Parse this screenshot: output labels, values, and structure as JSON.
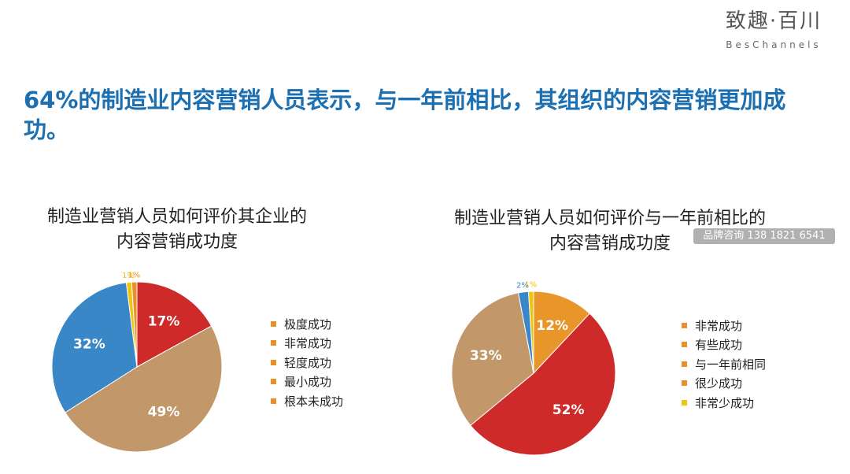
{
  "brand": {
    "cn": "致趣·百川",
    "en": "BesChannels"
  },
  "headline": "64%的制造业内容营销人员表示，与一年前相比，其组织的内容营销更加成功。",
  "watermark": "品牌咨询 138 1821 6541",
  "chart_data": [
    {
      "type": "pie",
      "title_line1": "制造业营销人员如何评价其企业的",
      "title_line2": "内容营销成功度",
      "slices": [
        {
          "label": "极度成功",
          "value": 17,
          "display": "17%",
          "color": "#cf2a2a"
        },
        {
          "label": "非常成功",
          "value": 49,
          "display": "49%",
          "color": "#c2976a"
        },
        {
          "label": "轻度成功",
          "value": 32,
          "display": "32%",
          "color": "#3a87c8"
        },
        {
          "label": "最小成功",
          "value": 1,
          "display": "1%",
          "color": "#f1c40f"
        },
        {
          "label": "根本未成功",
          "value": 1,
          "display": "1%",
          "color": "#e8902a"
        }
      ],
      "legend": [
        {
          "label": "极度成功",
          "color": "#e8902a"
        },
        {
          "label": "非常成功",
          "color": "#e8902a"
        },
        {
          "label": "轻度成功",
          "color": "#e8902a"
        },
        {
          "label": "最小成功",
          "color": "#e8902a"
        },
        {
          "label": "根本未成功",
          "color": "#e8902a"
        }
      ],
      "legend_position": "right"
    },
    {
      "type": "pie",
      "title_line1": "制造业营销人员如何评价与一年前相比的",
      "title_line2": "内容营销成功度",
      "slices": [
        {
          "label": "非常成功",
          "value": 12,
          "display": "12%",
          "color": "#e8962a"
        },
        {
          "label": "有些成功",
          "value": 52,
          "display": "52%",
          "color": "#cf2a2a"
        },
        {
          "label": "与一年前相同",
          "value": 33,
          "display": "33%",
          "color": "#c2976a"
        },
        {
          "label": "很少成功",
          "value": 2,
          "display": "2%",
          "color": "#3a87c8"
        },
        {
          "label": "非常少成功",
          "value": 1,
          "display": "1%",
          "color": "#f1c40f"
        }
      ],
      "legend": [
        {
          "label": "非常成功",
          "color": "#e8902a"
        },
        {
          "label": "有些成功",
          "color": "#e8902a"
        },
        {
          "label": "与一年前相同",
          "color": "#e8902a"
        },
        {
          "label": "很少成功",
          "color": "#e8902a"
        },
        {
          "label": "非常少成功",
          "color": "#f1c40f"
        }
      ],
      "legend_position": "right"
    }
  ]
}
